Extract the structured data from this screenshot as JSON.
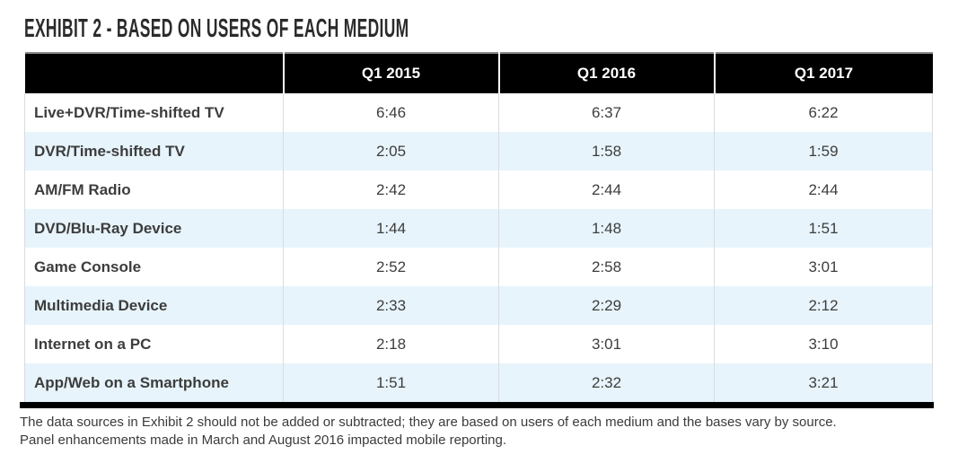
{
  "title": "EXHIBIT 2 - BASED ON USERS OF EACH MEDIUM",
  "colors": {
    "header_bg": "#000000",
    "header_text": "#ffffff",
    "stripe_row": "#e7f4fb",
    "body_text": "#3d3d3d",
    "title_text": "#2b2b2b"
  },
  "footnotes": [
    "The data sources in Exhibit 2 should not be added or subtracted; they are based on users of each medium and the bases vary by source.",
    "Panel enhancements made in March and August 2016 impacted mobile reporting."
  ],
  "chart_data": {
    "type": "table",
    "title": "EXHIBIT 2 - BASED ON USERS OF EACH MEDIUM",
    "corner_label": "",
    "columns": [
      "Q1 2015",
      "Q1 2016",
      "Q1 2017"
    ],
    "rows": [
      {
        "label": "Live+DVR/Time-shifted TV",
        "values": [
          "6:46",
          "6:37",
          "6:22"
        ]
      },
      {
        "label": "DVR/Time-shifted TV",
        "values": [
          "2:05",
          "1:58",
          "1:59"
        ]
      },
      {
        "label": "AM/FM Radio",
        "values": [
          "2:42",
          "2:44",
          "2:44"
        ]
      },
      {
        "label": "DVD/Blu-Ray Device",
        "values": [
          "1:44",
          "1:48",
          "1:51"
        ]
      },
      {
        "label": "Game Console",
        "values": [
          "2:52",
          "2:58",
          "3:01"
        ]
      },
      {
        "label": "Multimedia Device",
        "values": [
          "2:33",
          "2:29",
          "2:12"
        ]
      },
      {
        "label": "Internet on a PC",
        "values": [
          "2:18",
          "3:01",
          "3:10"
        ]
      },
      {
        "label": "App/Web on a Smartphone",
        "values": [
          "1:51",
          "2:32",
          "3:21"
        ]
      }
    ]
  }
}
